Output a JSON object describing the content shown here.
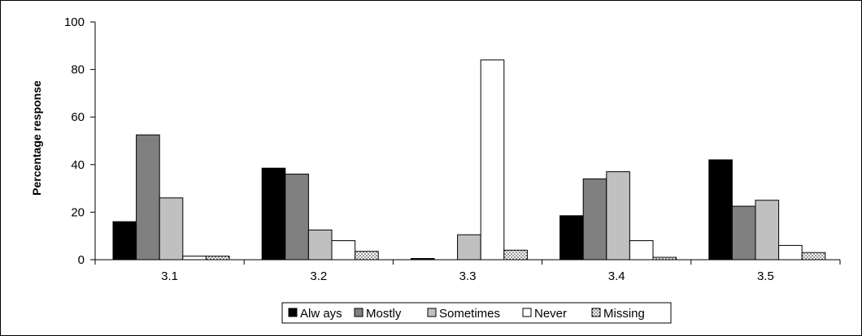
{
  "chart_data": {
    "type": "bar",
    "title": "",
    "xlabel": "",
    "ylabel": "Percentage response",
    "ylim": [
      0,
      100
    ],
    "yticks": [
      0,
      20,
      40,
      60,
      80,
      100
    ],
    "categories": [
      "3.1",
      "3.2",
      "3.3",
      "3.4",
      "3.5"
    ],
    "grid": false,
    "legend_position": "bottom",
    "series": [
      {
        "name": "Alw ays",
        "color": "#000000",
        "pattern": "solid",
        "values": [
          16,
          38.5,
          0.5,
          18.5,
          42
        ]
      },
      {
        "name": "Mostly",
        "color": "#808080",
        "pattern": "solid",
        "values": [
          52.5,
          36,
          0,
          34,
          22.5
        ]
      },
      {
        "name": "Sometimes",
        "color": "#c0c0c0",
        "pattern": "solid",
        "values": [
          26,
          12.5,
          10.5,
          37,
          25
        ]
      },
      {
        "name": "Never",
        "color": "#ffffff",
        "pattern": "solid",
        "values": [
          1.5,
          8,
          84,
          8,
          6
        ]
      },
      {
        "name": "Missing",
        "color": "#ffffff",
        "pattern": "dots",
        "values": [
          1.5,
          3.5,
          4,
          1,
          3
        ]
      }
    ]
  }
}
